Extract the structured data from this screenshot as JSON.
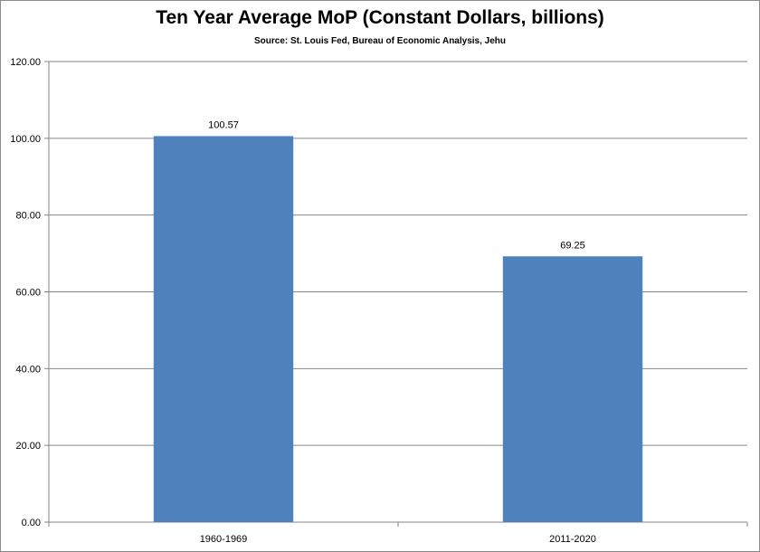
{
  "chart_data": {
    "type": "bar",
    "title": "Ten Year Average MoP (Constant Dollars, billions)",
    "subtitle": "Source: St. Louis Fed, Bureau of Economic Analysis,  Jehu",
    "categories": [
      "1960-1969",
      "2011-2020"
    ],
    "values": [
      100.57,
      69.25
    ],
    "data_labels": [
      "100.57",
      "69.25"
    ],
    "ylim": [
      0,
      120
    ],
    "y_ticks": [
      "0.00",
      "20.00",
      "40.00",
      "60.00",
      "80.00",
      "100.00",
      "120.00"
    ],
    "y_tick_values": [
      0,
      20,
      40,
      60,
      80,
      100,
      120
    ],
    "grid": true,
    "bar_color": "#4f81bd",
    "grid_color": "#868686"
  }
}
